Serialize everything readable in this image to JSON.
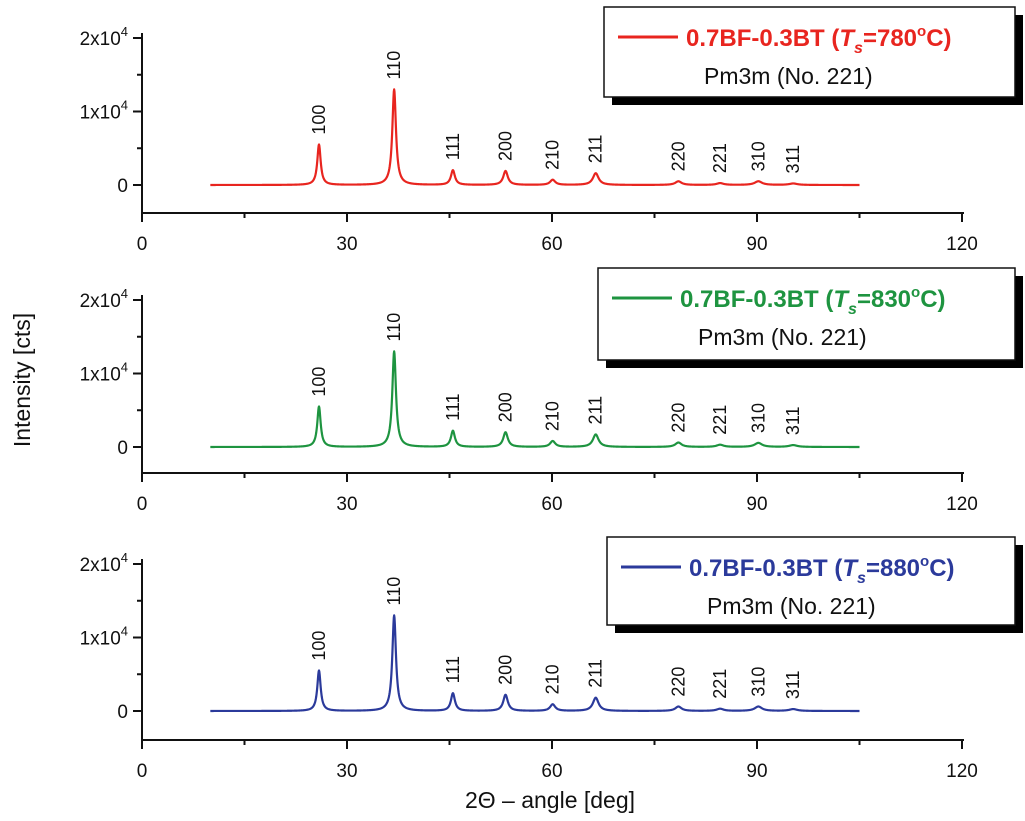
{
  "chart_data": {
    "type": "line",
    "xlabel": "2Θ – angle      [deg]",
    "ylabel": "Intensity     [cts]",
    "xlim": [
      0,
      120
    ],
    "ylim": [
      -3500,
      22000
    ],
    "x_ticks": [
      0,
      30,
      60,
      90,
      120
    ],
    "x_tick_labels": [
      "0",
      "30",
      "60",
      "90",
      "120"
    ],
    "y_ticks": [
      0,
      10000,
      20000
    ],
    "grid": false,
    "legend_position": "top-right",
    "peak_labels": [
      {
        "label": "100",
        "x": 25.9
      },
      {
        "label": "110",
        "x": 36.9
      },
      {
        "label": "111",
        "x": 45.5
      },
      {
        "label": "200",
        "x": 53.2
      },
      {
        "label": "210",
        "x": 60.1
      },
      {
        "label": "211",
        "x": 66.4
      },
      {
        "label": "220",
        "x": 78.5
      },
      {
        "label": "221",
        "x": 84.6
      },
      {
        "label": "310",
        "x": 90.2
      },
      {
        "label": "311",
        "x": 95.3
      }
    ],
    "panels": [
      {
        "series_name": "0.7BF-0.3BT",
        "ts_value": "=780",
        "ts_unit": "C",
        "structure": "Pm3m (No. 221)",
        "color": "#e8251f",
        "x_range": [
          10,
          105
        ],
        "baseline": 0,
        "peaks": [
          {
            "x": 25.9,
            "height": 5500,
            "width": 0.3
          },
          {
            "x": 36.9,
            "height": 13000,
            "width": 0.32
          },
          {
            "x": 45.5,
            "height": 2000,
            "width": 0.35
          },
          {
            "x": 53.2,
            "height": 1900,
            "width": 0.4
          },
          {
            "x": 60.1,
            "height": 700,
            "width": 0.45
          },
          {
            "x": 66.4,
            "height": 1600,
            "width": 0.5
          },
          {
            "x": 78.5,
            "height": 500,
            "width": 0.55
          },
          {
            "x": 84.6,
            "height": 250,
            "width": 0.6
          },
          {
            "x": 90.2,
            "height": 500,
            "width": 0.65
          },
          {
            "x": 95.3,
            "height": 200,
            "width": 0.7
          }
        ]
      },
      {
        "series_name": "0.7BF-0.3BT",
        "ts_value": "=830",
        "ts_unit": "C",
        "structure": "Pm3m (No. 221)",
        "color": "#1e9440",
        "x_range": [
          10,
          105
        ],
        "baseline": 0,
        "peaks": [
          {
            "x": 25.9,
            "height": 5500,
            "width": 0.3
          },
          {
            "x": 36.9,
            "height": 13000,
            "width": 0.32
          },
          {
            "x": 45.5,
            "height": 2200,
            "width": 0.35
          },
          {
            "x": 53.2,
            "height": 2000,
            "width": 0.4
          },
          {
            "x": 60.1,
            "height": 800,
            "width": 0.45
          },
          {
            "x": 66.4,
            "height": 1700,
            "width": 0.5
          },
          {
            "x": 78.5,
            "height": 600,
            "width": 0.55
          },
          {
            "x": 84.6,
            "height": 300,
            "width": 0.6
          },
          {
            "x": 90.2,
            "height": 550,
            "width": 0.65
          },
          {
            "x": 95.3,
            "height": 250,
            "width": 0.7
          }
        ]
      },
      {
        "series_name": "0.7BF-0.3BT",
        "ts_value": "=880",
        "ts_unit": "C",
        "structure": "Pm3m (No. 221)",
        "color": "#2b3a9b",
        "x_range": [
          10,
          105
        ],
        "baseline": 0,
        "peaks": [
          {
            "x": 25.9,
            "height": 5500,
            "width": 0.3
          },
          {
            "x": 36.9,
            "height": 13000,
            "width": 0.32
          },
          {
            "x": 45.5,
            "height": 2400,
            "width": 0.35
          },
          {
            "x": 53.2,
            "height": 2200,
            "width": 0.4
          },
          {
            "x": 60.1,
            "height": 900,
            "width": 0.45
          },
          {
            "x": 66.4,
            "height": 1800,
            "width": 0.5
          },
          {
            "x": 78.5,
            "height": 600,
            "width": 0.55
          },
          {
            "x": 84.6,
            "height": 300,
            "width": 0.6
          },
          {
            "x": 90.2,
            "height": 600,
            "width": 0.65
          },
          {
            "x": 95.3,
            "height": 250,
            "width": 0.7
          }
        ]
      }
    ]
  }
}
